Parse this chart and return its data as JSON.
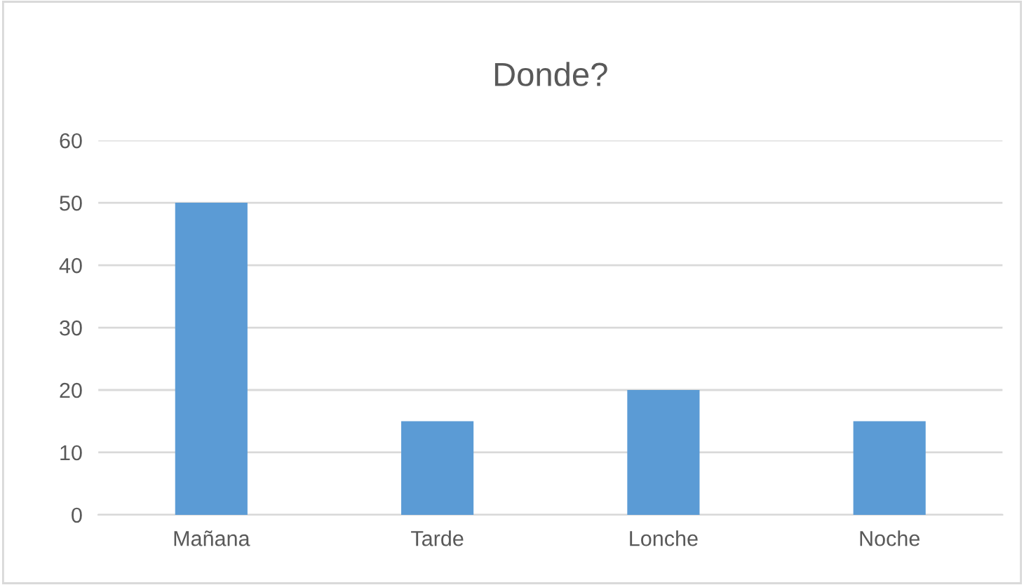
{
  "chart_data": {
    "type": "bar",
    "title": "Donde?",
    "categories": [
      "Mañana",
      "Tarde",
      "Lonche",
      "Noche"
    ],
    "values": [
      50,
      15,
      20,
      15
    ],
    "color": "#5b9bd5",
    "ylim": [
      0,
      60
    ],
    "yticks": [
      0,
      10,
      20,
      30,
      40,
      50,
      60
    ],
    "grid": "y",
    "legend": false
  }
}
